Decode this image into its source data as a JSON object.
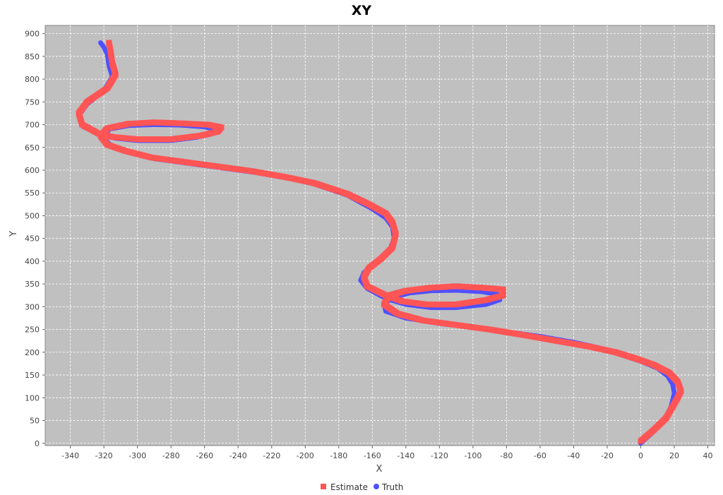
{
  "chart_data": {
    "type": "scatter",
    "title": "XY",
    "xlabel": "X",
    "ylabel": "Y",
    "xlim": [
      -355,
      44
    ],
    "ylim": [
      -5,
      918
    ],
    "xticks": [
      -340,
      -320,
      -300,
      -280,
      -260,
      -240,
      -220,
      -200,
      -180,
      -160,
      -140,
      -120,
      -100,
      -80,
      -60,
      -40,
      -20,
      0,
      20,
      40
    ],
    "yticks": [
      0,
      50,
      100,
      150,
      200,
      250,
      300,
      350,
      400,
      450,
      500,
      550,
      600,
      650,
      700,
      750,
      800,
      850,
      900
    ],
    "grid": true,
    "legend_position": "bottom",
    "series": [
      {
        "name": "Truth",
        "color": "#5050ff",
        "marker": "circle",
        "points": [
          [
            0,
            0
          ],
          [
            6,
            20
          ],
          [
            14,
            50
          ],
          [
            18,
            80
          ],
          [
            20,
            110
          ],
          [
            19,
            130
          ],
          [
            16,
            148
          ],
          [
            10,
            165
          ],
          [
            0,
            180
          ],
          [
            -12,
            195
          ],
          [
            -25,
            210
          ],
          [
            -40,
            222
          ],
          [
            -60,
            235
          ],
          [
            -80,
            245
          ],
          [
            -100,
            255
          ],
          [
            -120,
            263
          ],
          [
            -140,
            275
          ],
          [
            -152,
            290
          ],
          [
            -153,
            305
          ],
          [
            -148,
            320
          ],
          [
            -138,
            330
          ],
          [
            -125,
            335
          ],
          [
            -110,
            336
          ],
          [
            -95,
            333
          ],
          [
            -85,
            327
          ],
          [
            -84,
            315
          ],
          [
            -92,
            305
          ],
          [
            -110,
            298
          ],
          [
            -125,
            298
          ],
          [
            -140,
            305
          ],
          [
            -152,
            318
          ],
          [
            -163,
            340
          ],
          [
            -167,
            358
          ],
          [
            -165,
            375
          ],
          [
            -158,
            395
          ],
          [
            -150,
            420
          ],
          [
            -147,
            450
          ],
          [
            -148,
            475
          ],
          [
            -152,
            495
          ],
          [
            -160,
            515
          ],
          [
            -175,
            545
          ],
          [
            -195,
            570
          ],
          [
            -210,
            582
          ],
          [
            -230,
            595
          ],
          [
            -250,
            605
          ],
          [
            -270,
            615
          ],
          [
            -290,
            625
          ],
          [
            -305,
            640
          ],
          [
            -316,
            655
          ],
          [
            -320,
            670
          ],
          [
            -317,
            690
          ],
          [
            -305,
            698
          ],
          [
            -290,
            700
          ],
          [
            -275,
            699
          ],
          [
            -260,
            695
          ],
          [
            -252,
            688
          ],
          [
            -255,
            680
          ],
          [
            -265,
            672
          ],
          [
            -280,
            665
          ],
          [
            -300,
            665
          ],
          [
            -313,
            670
          ],
          [
            -322,
            678
          ],
          [
            -332,
            695
          ],
          [
            -335,
            720
          ],
          [
            -330,
            745
          ],
          [
            -320,
            775
          ],
          [
            -315,
            805
          ],
          [
            -317,
            830
          ],
          [
            -318,
            855
          ],
          [
            -320,
            870
          ],
          [
            -322,
            880
          ]
        ]
      },
      {
        "name": "Estimate",
        "color": "#ff5555",
        "marker": "square",
        "points": [
          [
            0,
            5
          ],
          [
            8,
            30
          ],
          [
            15,
            55
          ],
          [
            19,
            80
          ],
          [
            22,
            100
          ],
          [
            24,
            115
          ],
          [
            22,
            135
          ],
          [
            17,
            155
          ],
          [
            8,
            172
          ],
          [
            -2,
            185
          ],
          [
            -15,
            200
          ],
          [
            -30,
            212
          ],
          [
            -50,
            225
          ],
          [
            -70,
            238
          ],
          [
            -90,
            250
          ],
          [
            -110,
            260
          ],
          [
            -130,
            270
          ],
          [
            -145,
            285
          ],
          [
            -153,
            305
          ],
          [
            -150,
            325
          ],
          [
            -140,
            335
          ],
          [
            -125,
            342
          ],
          [
            -110,
            345
          ],
          [
            -95,
            342
          ],
          [
            -82,
            338
          ],
          [
            -82,
            325
          ],
          [
            -92,
            315
          ],
          [
            -110,
            305
          ],
          [
            -128,
            305
          ],
          [
            -142,
            312
          ],
          [
            -152,
            325
          ],
          [
            -163,
            345
          ],
          [
            -165,
            365
          ],
          [
            -162,
            385
          ],
          [
            -155,
            405
          ],
          [
            -148,
            430
          ],
          [
            -146,
            460
          ],
          [
            -148,
            485
          ],
          [
            -152,
            505
          ],
          [
            -162,
            525
          ],
          [
            -175,
            548
          ],
          [
            -195,
            572
          ],
          [
            -212,
            585
          ],
          [
            -232,
            598
          ],
          [
            -252,
            608
          ],
          [
            -272,
            618
          ],
          [
            -292,
            628
          ],
          [
            -307,
            642
          ],
          [
            -318,
            656
          ],
          [
            -322,
            675
          ],
          [
            -318,
            692
          ],
          [
            -305,
            702
          ],
          [
            -290,
            705
          ],
          [
            -275,
            703
          ],
          [
            -258,
            700
          ],
          [
            -250,
            694
          ],
          [
            -252,
            685
          ],
          [
            -262,
            676
          ],
          [
            -280,
            668
          ],
          [
            -300,
            668
          ],
          [
            -315,
            673
          ],
          [
            -323,
            680
          ],
          [
            -333,
            700
          ],
          [
            -335,
            725
          ],
          [
            -330,
            750
          ],
          [
            -318,
            780
          ],
          [
            -313,
            810
          ],
          [
            -315,
            835
          ],
          [
            -316,
            860
          ],
          [
            -317,
            880
          ]
        ]
      }
    ]
  }
}
